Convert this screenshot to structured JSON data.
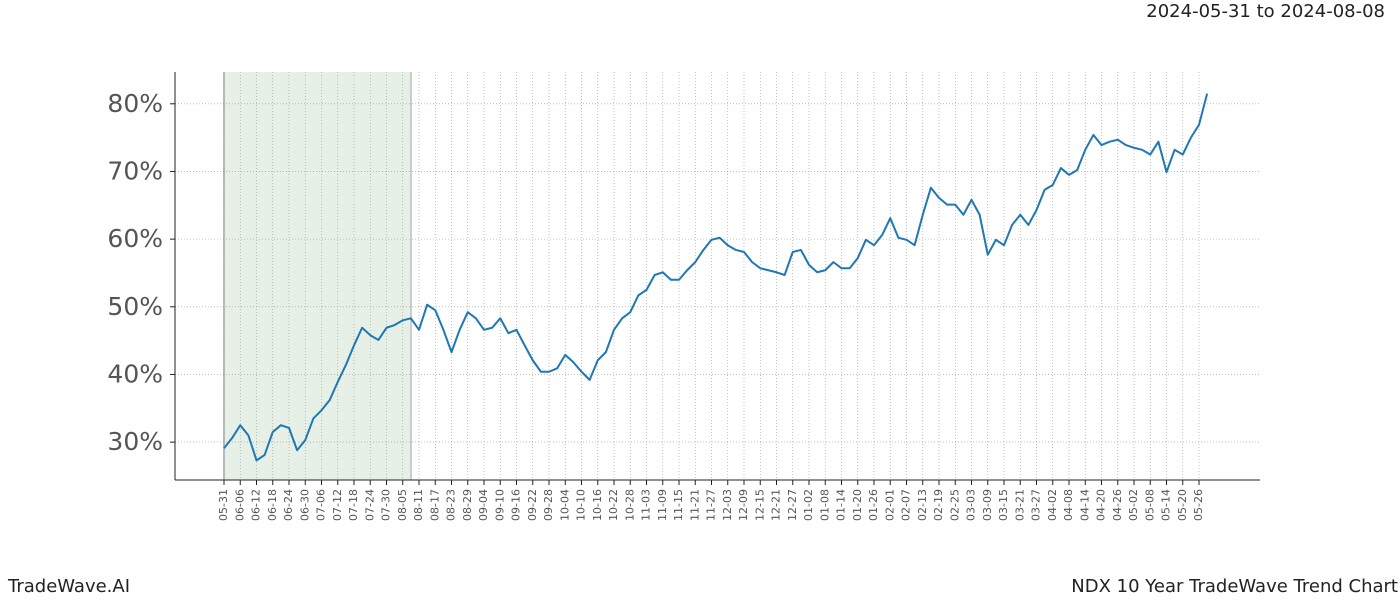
{
  "chart_data": {
    "type": "line",
    "title": "2024-05-31 to 2024-08-08",
    "footer_left": "TradeWave.AI",
    "footer_right": "NDX 10 Year TradeWave Trend Chart",
    "categories": [
      "05-31",
      null,
      "06-06",
      null,
      "06-12",
      null,
      "06-18",
      null,
      "06-24",
      null,
      "06-30",
      null,
      "07-06",
      null,
      "07-12",
      null,
      "07-18",
      null,
      "07-24",
      null,
      "07-30",
      null,
      "08-05",
      null,
      "08-11",
      null,
      "08-17",
      null,
      "08-23",
      null,
      "08-29",
      null,
      "09-04",
      null,
      "09-10",
      null,
      "09-16",
      null,
      "09-22",
      null,
      "09-28",
      null,
      "10-04",
      null,
      "10-10",
      null,
      "10-16",
      null,
      "10-22",
      null,
      "10-28",
      null,
      "11-03",
      null,
      "11-09",
      null,
      "11-15",
      null,
      "11-21",
      null,
      "11-27",
      null,
      "12-03",
      null,
      "12-09",
      null,
      "12-15",
      null,
      "12-21",
      null,
      "12-27",
      null,
      "01-02",
      null,
      "01-08",
      null,
      "01-14",
      null,
      "01-20",
      null,
      "01-26",
      null,
      "02-01",
      null,
      "02-07",
      null,
      "02-13",
      null,
      "02-19",
      null,
      "02-25",
      null,
      "03-03",
      null,
      "03-09",
      null,
      "03-15",
      null,
      "03-21",
      null,
      "03-27",
      null,
      "04-02",
      null,
      "04-08",
      null,
      "04-14",
      null,
      "04-20",
      null,
      "04-26",
      null,
      "05-02",
      null,
      "05-08",
      null,
      "05-14",
      null,
      "05-20",
      null,
      "05-26",
      null
    ],
    "series": [
      {
        "color": "#1f77b4",
        "values": [
          29.1,
          30.6,
          32.5,
          31.0,
          27.3,
          28.1,
          31.5,
          32.5,
          32.1,
          28.8,
          30.3,
          33.5,
          34.7,
          36.2,
          38.9,
          41.4,
          44.3,
          46.9,
          45.8,
          45.1,
          46.9,
          47.3,
          48.0,
          48.3,
          46.6,
          50.3,
          49.5,
          46.6,
          43.3,
          46.6,
          49.2,
          48.3,
          46.6,
          46.9,
          48.3,
          46.1,
          46.6,
          44.3,
          42.1,
          40.4,
          40.4,
          40.9,
          42.9,
          41.8,
          40.4,
          39.2,
          42.1,
          43.3,
          46.6,
          48.3,
          49.2,
          51.7,
          52.5,
          54.7,
          55.1,
          54.0,
          54.0,
          55.4,
          56.6,
          58.4,
          59.9,
          60.2,
          59.1,
          58.4,
          58.1,
          56.6,
          55.7,
          55.4,
          55.1,
          54.7,
          58.1,
          58.4,
          56.2,
          55.1,
          55.4,
          56.6,
          55.7,
          55.7,
          57.2,
          59.9,
          59.1,
          60.6,
          63.1,
          60.2,
          59.9,
          59.1,
          63.6,
          67.6,
          66.1,
          65.1,
          65.1,
          63.6,
          65.8,
          63.6,
          57.7,
          59.9,
          59.1,
          62.1,
          63.6,
          62.1,
          64.3,
          67.3,
          68.0,
          70.5,
          69.5,
          70.2,
          73.2,
          75.4,
          73.9,
          74.4,
          74.7,
          73.9,
          73.5,
          73.2,
          72.5,
          74.4,
          69.9,
          73.2,
          72.5,
          75.0,
          76.9,
          81.5
        ]
      }
    ],
    "ylim": [
      24.4,
      84.7
    ],
    "yticks": [
      {
        "value": 30,
        "label": "30%"
      },
      {
        "value": 40,
        "label": "40%"
      },
      {
        "value": 50,
        "label": "50%"
      },
      {
        "value": 60,
        "label": "60%"
      },
      {
        "value": 70,
        "label": "70%"
      },
      {
        "value": 80,
        "label": "80%"
      }
    ],
    "grid": true
  }
}
